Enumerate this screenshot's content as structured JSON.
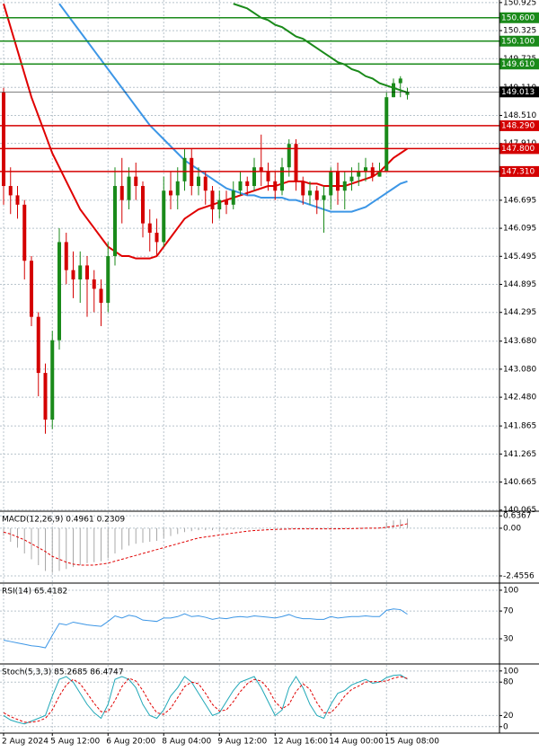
{
  "chart_data": [
    {
      "type": "candlestick",
      "up_color": "#1a8a1a",
      "down_color": "#d40000",
      "open": [
        149.0,
        147.0,
        146.8,
        146.6,
        145.4,
        144.2,
        143.0,
        142.0,
        143.7,
        145.8,
        145.2,
        145.0,
        145.3,
        145.0,
        144.8,
        144.5,
        145.5,
        147.0,
        146.7,
        147.2,
        147.0,
        146.2,
        146.0,
        145.8,
        146.9,
        146.8,
        147.1,
        147.6,
        147.0,
        147.2,
        146.9,
        146.5,
        146.7,
        146.6,
        146.9,
        147.1,
        147.0,
        147.4,
        147.3,
        147.1,
        146.9,
        147.4,
        147.9,
        147.1,
        146.8,
        146.9,
        146.7,
        146.8,
        147.3,
        146.9,
        147.1,
        147.2,
        147.3,
        147.4,
        147.2,
        147.3,
        148.9,
        149.2,
        148.95
      ],
      "high": [
        149.1,
        147.4,
        147.0,
        146.7,
        145.5,
        144.3,
        143.2,
        143.9,
        146.1,
        146.0,
        145.6,
        145.6,
        145.5,
        145.2,
        145.0,
        145.8,
        147.4,
        147.6,
        147.4,
        147.5,
        147.1,
        146.5,
        146.3,
        147.2,
        147.3,
        147.4,
        147.8,
        147.8,
        147.4,
        147.3,
        147.0,
        146.9,
        146.9,
        147.1,
        147.3,
        147.2,
        147.6,
        148.1,
        147.5,
        147.3,
        147.6,
        148.0,
        148.0,
        147.2,
        147.1,
        147.0,
        147.0,
        147.4,
        147.5,
        147.3,
        147.4,
        147.5,
        147.6,
        147.5,
        147.5,
        149.0,
        149.3,
        149.35,
        149.1
      ],
      "low": [
        146.6,
        146.4,
        146.3,
        145.0,
        144.0,
        142.5,
        141.7,
        141.8,
        143.5,
        144.9,
        144.6,
        144.5,
        144.2,
        144.3,
        144.0,
        144.3,
        145.3,
        146.2,
        146.5,
        146.7,
        145.9,
        145.6,
        145.5,
        145.7,
        146.5,
        146.5,
        146.9,
        146.8,
        146.8,
        146.6,
        146.2,
        146.3,
        146.4,
        146.5,
        146.8,
        146.8,
        146.9,
        147.0,
        146.9,
        146.7,
        146.8,
        147.2,
        146.9,
        146.6,
        146.6,
        146.4,
        146.0,
        146.5,
        146.6,
        146.5,
        146.9,
        147.0,
        147.1,
        147.1,
        147.2,
        147.3,
        148.9,
        148.9,
        148.85
      ],
      "close": [
        147.0,
        146.8,
        146.6,
        145.4,
        144.2,
        143.0,
        142.0,
        143.7,
        145.8,
        145.2,
        145.0,
        145.3,
        145.0,
        144.8,
        144.5,
        145.5,
        147.0,
        146.7,
        147.2,
        147.0,
        146.2,
        146.0,
        145.8,
        146.9,
        146.8,
        147.1,
        147.6,
        147.0,
        147.2,
        146.9,
        146.5,
        146.7,
        146.6,
        146.9,
        147.1,
        147.0,
        147.4,
        147.3,
        147.1,
        146.9,
        147.4,
        147.9,
        147.1,
        146.8,
        146.9,
        146.7,
        146.8,
        147.3,
        146.9,
        147.1,
        147.2,
        147.3,
        147.4,
        147.2,
        147.3,
        148.9,
        149.2,
        149.3,
        149.013
      ],
      "series": [
        {
          "color": "#e00000",
          "values": [
            150.9,
            150.4,
            149.9,
            149.4,
            148.9,
            148.5,
            148.1,
            147.7,
            147.4,
            147.1,
            146.8,
            146.5,
            146.3,
            146.1,
            145.9,
            145.7,
            145.6,
            145.5,
            145.5,
            145.45,
            145.45,
            145.45,
            145.5,
            145.7,
            145.9,
            146.1,
            146.3,
            146.4,
            146.5,
            146.55,
            146.6,
            146.65,
            146.7,
            146.75,
            146.8,
            146.85,
            146.9,
            146.95,
            147.0,
            147.0,
            147.05,
            147.1,
            147.1,
            147.1,
            147.05,
            147.05,
            147.0,
            147.0,
            147.0,
            147.0,
            147.05,
            147.1,
            147.15,
            147.2,
            147.3,
            147.45,
            147.6,
            147.7,
            147.8
          ]
        },
        {
          "color": "#3c96e6",
          "values": [
            null,
            null,
            null,
            null,
            null,
            null,
            null,
            null,
            150.9,
            150.7,
            150.5,
            150.3,
            150.1,
            149.9,
            149.7,
            149.5,
            149.3,
            149.1,
            148.9,
            148.7,
            148.5,
            148.3,
            148.15,
            148.0,
            147.85,
            147.7,
            147.55,
            147.45,
            147.35,
            147.25,
            147.15,
            147.05,
            146.95,
            146.9,
            146.85,
            146.8,
            146.8,
            146.75,
            146.75,
            146.75,
            146.75,
            146.7,
            146.7,
            146.65,
            146.6,
            146.55,
            146.5,
            146.45,
            146.45,
            146.45,
            146.45,
            146.5,
            146.55,
            146.65,
            146.75,
            146.85,
            146.95,
            147.05,
            147.1
          ]
        },
        {
          "color": "#1a8a1a",
          "values": [
            null,
            null,
            null,
            null,
            null,
            null,
            null,
            null,
            null,
            null,
            null,
            null,
            null,
            null,
            null,
            null,
            null,
            null,
            null,
            null,
            null,
            null,
            null,
            null,
            null,
            null,
            null,
            null,
            null,
            null,
            null,
            null,
            null,
            150.9,
            150.85,
            150.8,
            150.7,
            150.6,
            150.55,
            150.45,
            150.4,
            150.3,
            150.2,
            150.15,
            150.05,
            149.95,
            149.85,
            149.75,
            149.65,
            149.6,
            149.5,
            149.45,
            149.35,
            149.3,
            149.2,
            149.15,
            149.1,
            149.05,
            149.0
          ]
        }
      ],
      "levels": [
        {
          "value": 150.6,
          "label": "150.600",
          "color": "#1a8a1a"
        },
        {
          "value": 150.1,
          "label": "150.100",
          "color": "#1a8a1a"
        },
        {
          "value": 149.61,
          "label": "149.610",
          "color": "#1a8a1a"
        },
        {
          "value": 148.29,
          "label": "148.290",
          "color": "#d40000"
        },
        {
          "value": 147.8,
          "label": "147.800",
          "color": "#d40000"
        },
        {
          "value": 147.31,
          "label": "147.310",
          "color": "#d40000"
        }
      ],
      "current_price": {
        "value": 149.013,
        "label": "149.013",
        "color": "#000000"
      },
      "ylim": [
        140.06,
        150.98
      ],
      "yticks": [
        150.925,
        150.325,
        149.725,
        {
          "value": 149.11,
          "label": "149.110"
        },
        {
          "value": 148.51,
          "label": "148.510"
        },
        {
          "value": 147.91,
          "label": "147.910"
        },
        146.695,
        146.095,
        145.495,
        144.895,
        144.295,
        {
          "value": 143.68,
          "label": "143.680"
        },
        {
          "value": 143.08,
          "label": "143.080"
        },
        {
          "value": 142.48,
          "label": "142.480"
        },
        141.865,
        141.265,
        140.665,
        140.065
      ]
    },
    {
      "type": "macd",
      "title": "MACD(12,26,9) 0.4961 0.2309",
      "series": [
        {
          "color": "#a8a8a8",
          "values": [
            -0.4,
            -0.7,
            -1.0,
            -1.3,
            -1.6,
            -1.9,
            -2.2,
            -2.3,
            -2.2,
            -2.1,
            -2.0,
            -1.9,
            -1.8,
            -1.75,
            -1.7,
            -1.55,
            -1.3,
            -1.1,
            -0.9,
            -0.8,
            -0.75,
            -0.7,
            -0.65,
            -0.5,
            -0.4,
            -0.3,
            -0.2,
            -0.15,
            -0.1,
            -0.1,
            -0.1,
            -0.08,
            -0.08,
            -0.06,
            -0.05,
            -0.04,
            -0.03,
            -0.02,
            -0.02,
            -0.02,
            0,
            0.02,
            0,
            -0.02,
            -0.03,
            -0.03,
            -0.03,
            -0.02,
            -0.02,
            -0.01,
            0,
            0.01,
            0.02,
            0.02,
            0.03,
            0.3,
            0.4,
            0.45,
            0.4961
          ]
        },
        {
          "color": "#e00000",
          "values": [
            -0.2,
            -0.3,
            -0.45,
            -0.6,
            -0.8,
            -1.0,
            -1.2,
            -1.45,
            -1.6,
            -1.75,
            -1.85,
            -1.9,
            -1.9,
            -1.9,
            -1.85,
            -1.8,
            -1.7,
            -1.6,
            -1.5,
            -1.4,
            -1.3,
            -1.2,
            -1.1,
            -1.0,
            -0.9,
            -0.8,
            -0.7,
            -0.6,
            -0.5,
            -0.45,
            -0.4,
            -0.35,
            -0.3,
            -0.25,
            -0.2,
            -0.15,
            -0.12,
            -0.1,
            -0.08,
            -0.06,
            -0.05,
            -0.04,
            -0.03,
            -0.03,
            -0.03,
            -0.03,
            -0.03,
            -0.03,
            -0.03,
            -0.02,
            -0.02,
            -0.01,
            0,
            0,
            0.01,
            0.05,
            0.1,
            0.15,
            0.2309
          ]
        }
      ],
      "ylim": [
        -2.78,
        0.83
      ],
      "yticks": [
        0.6367,
        {
          "value": 0,
          "label": "0.00"
        },
        -2.4556
      ]
    },
    {
      "type": "oscillator",
      "title": "RSI(14) 65.4182",
      "series": [
        {
          "color": "#3c96e6",
          "values": [
            28,
            26,
            24,
            22,
            20,
            19,
            17,
            35,
            52,
            50,
            54,
            52,
            50,
            49,
            48,
            55,
            63,
            60,
            64,
            62,
            57,
            56,
            55,
            60,
            60,
            62,
            66,
            62,
            63,
            61,
            58,
            60,
            59,
            61,
            62,
            61,
            63,
            62,
            61,
            60,
            62,
            65,
            61,
            59,
            59,
            58,
            58,
            62,
            60,
            61,
            62,
            62,
            63,
            62,
            62,
            71,
            73,
            72,
            65.4182
          ]
        }
      ],
      "ylim": [
        -5,
        109
      ],
      "yticks": [
        100,
        70,
        30
      ]
    },
    {
      "type": "oscillator",
      "title": "Stoch(5,3,3) 85.2685 86.4747",
      "series": [
        {
          "color": "#20a8b8",
          "values": [
            20,
            12,
            8,
            5,
            10,
            15,
            20,
            55,
            85,
            90,
            80,
            60,
            40,
            25,
            15,
            40,
            85,
            90,
            85,
            70,
            40,
            20,
            15,
            30,
            55,
            70,
            90,
            80,
            60,
            40,
            20,
            25,
            45,
            65,
            80,
            85,
            90,
            70,
            45,
            20,
            30,
            70,
            90,
            70,
            40,
            20,
            15,
            40,
            60,
            65,
            75,
            80,
            85,
            78,
            80,
            88,
            92,
            93,
            85.2685
          ]
        },
        {
          "color": "#e00000",
          "dashed": true,
          "values": [
            25,
            18,
            13,
            8,
            8,
            10,
            15,
            30,
            55,
            75,
            85,
            77,
            60,
            42,
            27,
            27,
            47,
            72,
            87,
            82,
            65,
            43,
            25,
            22,
            33,
            52,
            72,
            80,
            77,
            60,
            40,
            28,
            30,
            45,
            63,
            77,
            85,
            82,
            68,
            45,
            32,
            40,
            63,
            77,
            67,
            43,
            25,
            25,
            38,
            55,
            67,
            73,
            80,
            81,
            81,
            82,
            87,
            90,
            86.4747
          ]
        }
      ],
      "ylim": [
        -10,
        111
      ],
      "yticks": [
        100,
        80,
        20,
        0
      ],
      "x": [
        "2 Aug 2024",
        null,
        null,
        null,
        null,
        null,
        null,
        "5 Aug 12:00",
        null,
        null,
        null,
        null,
        null,
        null,
        null,
        "6 Aug 20:00",
        null,
        null,
        null,
        null,
        null,
        null,
        null,
        "8 Aug 04:00",
        null,
        null,
        null,
        null,
        null,
        null,
        null,
        "9 Aug 12:00",
        null,
        null,
        null,
        null,
        null,
        null,
        null,
        "12 Aug 16:00",
        null,
        null,
        null,
        null,
        null,
        null,
        null,
        "14 Aug 00:00",
        null,
        null,
        null,
        null,
        null,
        null,
        null,
        "15 Aug 08:00",
        null,
        null,
        null
      ]
    }
  ]
}
